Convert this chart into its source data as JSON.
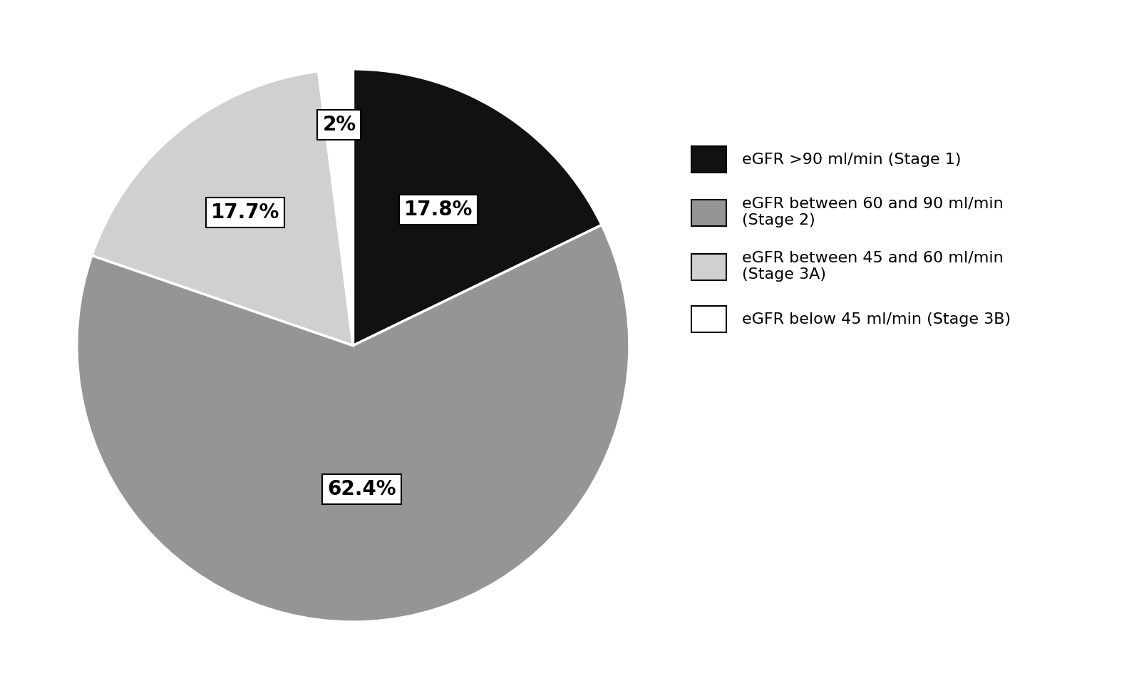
{
  "slices": [
    17.8,
    62.4,
    17.7,
    2.0
  ],
  "colors": [
    "#111111",
    "#959595",
    "#d0d0d0",
    "#ffffff"
  ],
  "edge_color": "#ffffff",
  "slice_labels": [
    "17.8%",
    "62.4%",
    "17.7%",
    "2%"
  ],
  "label_radii": [
    0.58,
    0.52,
    0.62,
    0.8
  ],
  "legend_labels": [
    "eGFR >90 ml/min (Stage 1)",
    "eGFR between 60 and 90 ml/min\n(Stage 2)",
    "eGFR between 45 and 60 ml/min\n(Stage 3A)",
    "eGFR below 45 ml/min (Stage 3B)"
  ],
  "legend_colors": [
    "#111111",
    "#959595",
    "#d0d0d0",
    "#ffffff"
  ],
  "startangle": 90,
  "label_fontsize": 20,
  "legend_fontsize": 16,
  "background_color": "#ffffff"
}
